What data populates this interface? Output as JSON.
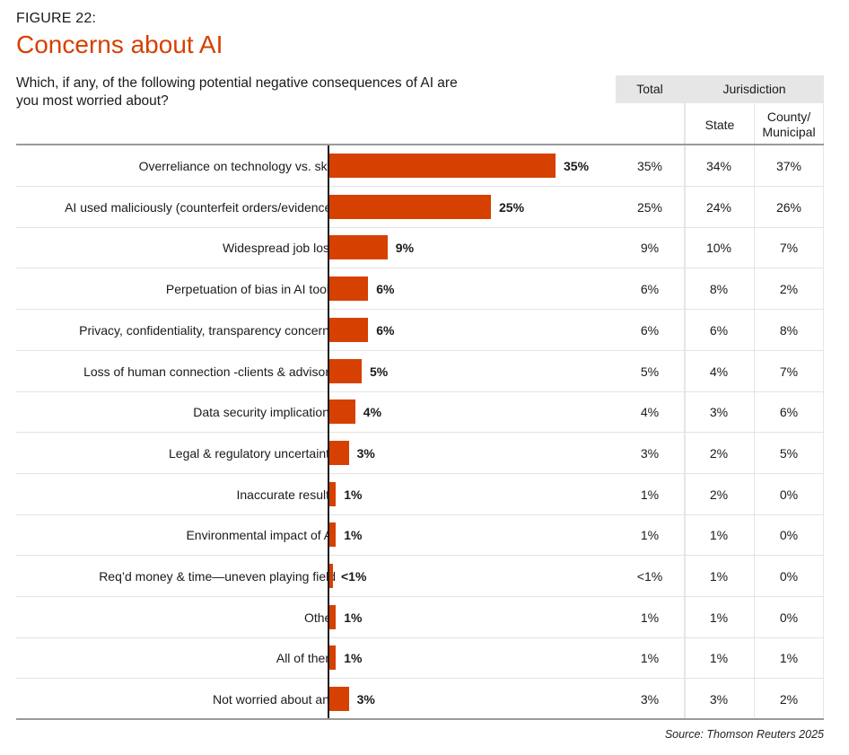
{
  "figure_label": "FIGURE 22:",
  "title": "Concerns about AI",
  "question": "Which, if any, of the following potential negative consequences of AI are you most worried about?",
  "headers": {
    "total": "Total",
    "jurisdiction": "Jurisdiction",
    "state": "State",
    "county": "County/ Municipal"
  },
  "source": "Source: Thomson Reuters 2025",
  "colors": {
    "bar": "#d64000",
    "title": "#d64000"
  },
  "chart_data": {
    "type": "bar",
    "orientation": "horizontal",
    "title": "Concerns about AI",
    "xlim": [
      0,
      35
    ],
    "categories": [
      "Overreliance on technology vs. skill",
      "AI used maliciously (counterfeit orders/evidence)",
      "Widespread job loss",
      "Perpetuation of bias in AI tools",
      "Privacy, confidentiality, transparency concerns",
      "Loss of human connection -clients & advisors",
      "Data security implications",
      "Legal & regulatory uncertainty",
      "Inaccurate results",
      "Environmental impact of AI",
      "Req’d money & time—uneven playing field",
      "Other",
      "All of them",
      "Not worried about any"
    ],
    "values": [
      35,
      25,
      9,
      6,
      6,
      5,
      4,
      3,
      1,
      1,
      0.5,
      1,
      1,
      3
    ],
    "value_labels": [
      "35%",
      "25%",
      "9%",
      "6%",
      "6%",
      "5%",
      "4%",
      "3%",
      "1%",
      "1%",
      "<1%",
      "1%",
      "1%",
      "3%"
    ],
    "table": {
      "total": [
        "35%",
        "25%",
        "9%",
        "6%",
        "6%",
        "5%",
        "4%",
        "3%",
        "1%",
        "1%",
        "<1%",
        "1%",
        "1%",
        "3%"
      ],
      "state": [
        "34%",
        "24%",
        "10%",
        "8%",
        "6%",
        "4%",
        "3%",
        "2%",
        "2%",
        "1%",
        "1%",
        "1%",
        "1%",
        "3%"
      ],
      "county_municipal": [
        "37%",
        "26%",
        "7%",
        "2%",
        "8%",
        "7%",
        "6%",
        "5%",
        "0%",
        "0%",
        "0%",
        "0%",
        "1%",
        "2%"
      ]
    }
  }
}
